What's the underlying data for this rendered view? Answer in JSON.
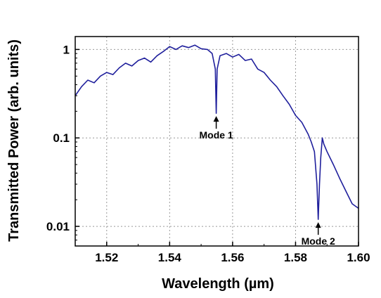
{
  "chart_data": {
    "type": "line",
    "xlabel": "Wavelength (µm)",
    "ylabel": "Transmitted Power (arb. units)",
    "xlim": [
      1.51,
      1.6
    ],
    "ylim": [
      0.006,
      1.4
    ],
    "yscale": "log",
    "grid": true,
    "x_ticks": [
      1.52,
      1.54,
      1.56,
      1.58,
      1.6
    ],
    "x_tick_labels": [
      "1.52",
      "1.54",
      "1.56",
      "1.58",
      "1.60"
    ],
    "y_ticks": [
      1,
      0.1,
      0.01
    ],
    "y_tick_labels": [
      "1",
      "0.1",
      "0.01"
    ],
    "series": [
      {
        "color": "#1f1f9c",
        "x": [
          1.51,
          1.512,
          1.514,
          1.516,
          1.518,
          1.52,
          1.522,
          1.524,
          1.526,
          1.528,
          1.53,
          1.532,
          1.534,
          1.536,
          1.538,
          1.54,
          1.542,
          1.544,
          1.546,
          1.548,
          1.55,
          1.552,
          1.5535,
          1.5545,
          1.5548,
          1.5551,
          1.556,
          1.558,
          1.56,
          1.562,
          1.564,
          1.566,
          1.568,
          1.57,
          1.572,
          1.574,
          1.576,
          1.578,
          1.58,
          1.582,
          1.584,
          1.585,
          1.586,
          1.5868,
          1.5872,
          1.5876,
          1.588,
          1.5885,
          1.589,
          1.59,
          1.592,
          1.594,
          1.596,
          1.598,
          1.6
        ],
        "y": [
          0.3,
          0.38,
          0.45,
          0.42,
          0.5,
          0.55,
          0.52,
          0.62,
          0.7,
          0.65,
          0.75,
          0.8,
          0.72,
          0.85,
          0.95,
          1.08,
          1.0,
          1.1,
          1.05,
          1.12,
          1.02,
          1.0,
          0.9,
          0.6,
          0.19,
          0.6,
          0.85,
          0.9,
          0.82,
          0.88,
          0.75,
          0.78,
          0.6,
          0.55,
          0.45,
          0.38,
          0.3,
          0.24,
          0.18,
          0.15,
          0.11,
          0.09,
          0.07,
          0.03,
          0.012,
          0.03,
          0.06,
          0.1,
          0.085,
          0.07,
          0.05,
          0.035,
          0.025,
          0.018,
          0.016
        ]
      }
    ],
    "annotations": [
      {
        "text": "Mode 1",
        "x": 1.5548,
        "y": 0.19
      },
      {
        "text": "Mode 2",
        "x": 1.5872,
        "y": 0.012
      }
    ]
  }
}
